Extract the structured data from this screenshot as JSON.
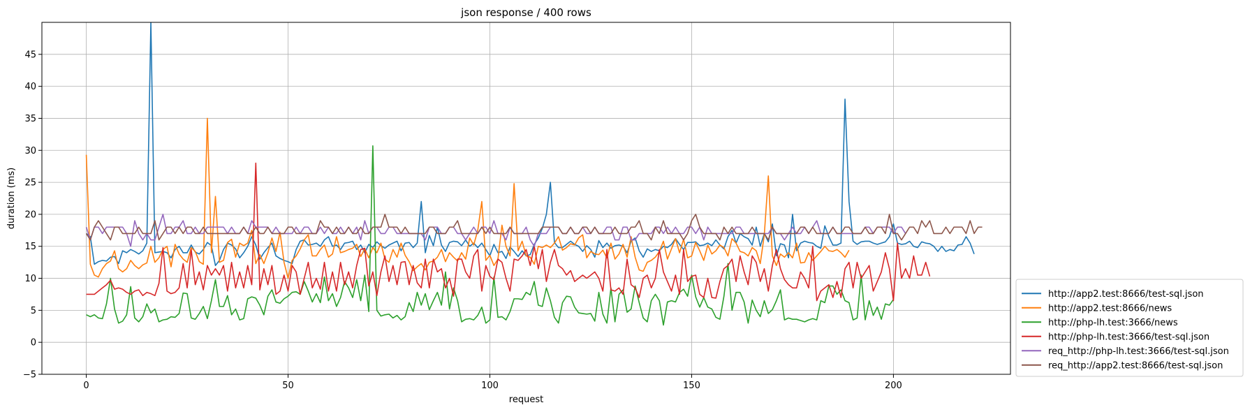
{
  "chart_data": {
    "type": "line",
    "title": "json response / 400 rows",
    "xlabel": "request",
    "ylabel": "duration (ms)",
    "xlim": [
      -11,
      229
    ],
    "ylim": [
      -5,
      50
    ],
    "xticks": [
      0,
      50,
      100,
      150,
      200
    ],
    "yticks": [
      -5,
      0,
      5,
      10,
      15,
      20,
      25,
      30,
      35,
      40,
      45
    ],
    "grid": true,
    "legend_position": "outside-right-bottom",
    "series": [
      {
        "name": "http://app2.test:8666/test-sql.json",
        "color": "#1f77b4",
        "values": [
          17,
          16.5,
          12.2,
          12.6,
          12.8,
          12.7,
          13.3,
          13.4,
          12.3,
          14.3,
          14,
          14.5,
          14.2,
          13.8,
          14.3,
          15.5,
          50,
          14,
          14.1,
          14.2,
          14,
          13.2,
          14.5,
          15,
          14,
          14,
          15.2,
          14.1,
          13.8,
          14.5,
          15.6,
          15.1,
          12,
          12.8,
          14.5,
          15.5,
          15.2,
          14.6,
          13.2,
          14,
          15,
          16.5,
          15.2,
          13,
          14,
          14.8,
          15.5,
          13.5,
          13.1,
          12.8,
          12.6,
          12.3,
          14.5,
          15.8,
          16,
          15.2,
          15.3,
          15.5,
          15,
          16,
          16.5,
          15,
          15.2,
          14.5,
          15.5,
          15.6,
          15.8,
          14.5,
          15.2,
          14,
          15.3,
          14.8,
          15.7,
          15.1,
          14.7,
          15.2,
          15.5,
          15.8,
          14.3,
          15.5,
          15.6,
          14.8,
          15.5,
          22,
          14,
          16.7,
          15.1,
          18,
          15.2,
          14.2,
          15.6,
          15.8,
          15.7,
          15.1,
          16,
          15,
          15.5,
          14.8,
          15.5,
          14.5,
          13.5,
          15.3,
          14,
          14.2,
          13.1,
          14.9,
          14.2,
          13.4,
          14.3,
          13.5,
          13.7,
          15.3,
          16.3,
          17.8,
          20,
          25,
          15.6,
          14.8,
          14.8,
          15.3,
          15.8,
          15.3,
          15,
          14.2,
          15.1,
          14.5,
          13.3,
          15.9,
          14.8,
          15.5,
          14.7,
          15.1,
          15.2,
          15,
          14,
          15.8,
          16.3,
          14.3,
          13.3,
          14.6,
          14.2,
          14.5,
          14.3,
          15,
          14.8,
          15.3,
          16.2,
          15.3,
          14.5,
          15.6,
          15.6,
          15.7,
          15.1,
          15.2,
          15.5,
          15.1,
          16,
          15.2,
          14.6,
          16.5,
          17.5,
          15.5,
          17,
          16.5,
          16.2,
          15.2,
          18,
          15,
          17,
          15.7,
          18.5,
          13.5,
          15.4,
          15.2,
          13.2,
          20,
          14.3,
          15.5,
          15.8,
          15.6,
          15.5,
          15,
          14.7,
          18.2,
          16.5,
          15.2,
          15.2,
          15.5,
          38,
          22,
          15.8,
          15.3,
          15.7,
          15.8,
          15.8,
          15.5,
          15.3,
          15.5,
          15.7,
          16.5,
          18.5,
          15.5,
          15.3,
          15.4,
          15.8,
          15,
          14.8,
          15.7,
          15.5,
          15.4,
          15,
          14.2,
          15,
          14.2,
          14.5,
          14.3,
          15.2,
          15.3,
          16.5,
          15.5,
          13.8
        ]
      },
      {
        "name": "http://app2.test:8666/news",
        "color": "#ff7f0e",
        "values": [
          29.3,
          12.2,
          10.5,
          10.2,
          11.5,
          12.3,
          12.7,
          14.3,
          11.5,
          11,
          11.5,
          12.8,
          12,
          11.5,
          12.1,
          12.4,
          15,
          12.5,
          13.2,
          14.5,
          15,
          11.8,
          15.3,
          13.8,
          13,
          12.5,
          14.8,
          14.2,
          12.6,
          12.2,
          35,
          14,
          22.8,
          12.5,
          12.8,
          15.6,
          16.1,
          13.3,
          15.5,
          15.1,
          15.5,
          17.5,
          12.3,
          13.7,
          12.3,
          14,
          16.3,
          14.2,
          17.2,
          12.5,
          10,
          12.8,
          13.5,
          14.6,
          16,
          16.8,
          13.5,
          13.5,
          14.5,
          15.2,
          13.3,
          13.8,
          16.5,
          14,
          14.2,
          14.5,
          14.7,
          15.3,
          13.4,
          14.6,
          13.2,
          14.8,
          14,
          15.5,
          13,
          12.5,
          14.5,
          13.3,
          15.5,
          13.6,
          12.6,
          11.2,
          11.8,
          12.3,
          11.3,
          12.5,
          12.7,
          13.3,
          14.5,
          12.6,
          14,
          13.3,
          12.7,
          14,
          13,
          16.3,
          15.2,
          17.5,
          22,
          12.8,
          13.6,
          12,
          13,
          18.3,
          15,
          13.5,
          24.8,
          14.3,
          15.8,
          13.5,
          13.3,
          12.2,
          15,
          14.8,
          15.2,
          14.8,
          15.5,
          16.5,
          14.4,
          14.8,
          15.4,
          15.2,
          16.3,
          16.8,
          13.2,
          14.2,
          13.8,
          13.7,
          14.4,
          13.2,
          15.5,
          13,
          13.8,
          15.3,
          13.3,
          16.5,
          13.3,
          11.3,
          11.1,
          12.5,
          12.8,
          13.3,
          14.2,
          15.8,
          13,
          14.6,
          16.2,
          14,
          16.1,
          13.2,
          13.5,
          15.6,
          14.3,
          12.8,
          15.2,
          13.8,
          14.3,
          15.2,
          14.8,
          13.5,
          16.2,
          15.5,
          14.2,
          14,
          13.5,
          14.8,
          14.3,
          12.3,
          16.8,
          26,
          13.5,
          12,
          13.8,
          13.3,
          14,
          13.2,
          15.5,
          12.4,
          12.5,
          14,
          12.8,
          13.5,
          14.2,
          15,
          14.3,
          14.2,
          14.5,
          14,
          13.3,
          14.4
        ]
      },
      {
        "name": "http://php-lh.test:3666/news",
        "color": "#2ca02c",
        "values": [
          4.3,
          4,
          4.3,
          3.8,
          3.7,
          6,
          10,
          5.2,
          3,
          3.3,
          4.3,
          8.7,
          3.8,
          3.2,
          4,
          6,
          4.6,
          5.2,
          3.2,
          3.5,
          3.6,
          4,
          3.9,
          4.5,
          7.7,
          7.6,
          3.8,
          3.6,
          4.5,
          5.6,
          3.7,
          6.5,
          9.8,
          5.6,
          5.6,
          7.3,
          4.3,
          5.2,
          3.5,
          3.7,
          6.8,
          7.1,
          6.9,
          5.8,
          4.3,
          7.2,
          8.2,
          6.3,
          6.1,
          6.8,
          7.2,
          7.8,
          7.9,
          7.5,
          9.5,
          8,
          6.3,
          7.6,
          6.2,
          10.2,
          6.5,
          7.6,
          5.6,
          7,
          9.5,
          8.5,
          7,
          9.8,
          6.5,
          10.5,
          4.8,
          30.7,
          5,
          4.1,
          4.3,
          4.4,
          3.8,
          4.2,
          3.5,
          4,
          6.2,
          4.8,
          7.8,
          5.8,
          7.6,
          5.1,
          6.5,
          7.8,
          5.8,
          11,
          5.2,
          8.5,
          6.5,
          3.2,
          3.6,
          3.7,
          3.5,
          4.2,
          5.5,
          3,
          3.5,
          10.2,
          3.9,
          4,
          3.5,
          4.8,
          6.8,
          6.8,
          6.7,
          7.8,
          7.4,
          9.5,
          5.8,
          5.6,
          8.5,
          6.5,
          3.9,
          3,
          6.2,
          7.2,
          7.1,
          5.5,
          4.6,
          4.5,
          4.4,
          4.5,
          3.3,
          7.8,
          4.4,
          3,
          8.5,
          3.2,
          7.5,
          8.2,
          4.7,
          5.2,
          8.8,
          6.2,
          3.8,
          3.2,
          6.5,
          7.5,
          6.5,
          2.7,
          6.3,
          6.5,
          6.3,
          7.8,
          8.3,
          7.2,
          10.5,
          7.1,
          5.5,
          7,
          5.5,
          5.2,
          3.9,
          3.6,
          7.2,
          12.3,
          5,
          7.8,
          7.8,
          6.3,
          3,
          6.6,
          5,
          4,
          6.5,
          4.5,
          5.1,
          6.5,
          8.2,
          3.5,
          3.8,
          3.6,
          3.6,
          3.4,
          3.2,
          3.5,
          3.7,
          3.5,
          6.5,
          6.2,
          8.8,
          8.8,
          7.5,
          8.2,
          6.5,
          6.2,
          3.5,
          3.8,
          10.5,
          3.5,
          6.5,
          4.2,
          5.5,
          3.6,
          6,
          5.8,
          6.7
        ]
      },
      {
        "name": "http://php-lh.test:3666/test-sql.json",
        "color": "#d62728",
        "values": [
          7.5,
          7.5,
          7.5,
          8,
          8.5,
          9,
          9.7,
          8.3,
          8.5,
          8.3,
          7.8,
          7.5,
          8,
          8.2,
          7.3,
          7.8,
          7.6,
          7.3,
          9.2,
          14.8,
          8,
          7.6,
          7.8,
          8.5,
          12.3,
          8.5,
          14.5,
          9,
          11,
          8.2,
          12,
          10.5,
          11.5,
          10.5,
          12,
          8,
          12.5,
          8.5,
          11,
          8.5,
          12,
          9,
          28,
          8.2,
          11.5,
          9,
          12,
          7.5,
          8,
          10.5,
          8,
          12,
          11,
          7.5,
          10,
          12.5,
          8.5,
          10,
          8.3,
          12.5,
          8,
          11,
          8,
          12.5,
          9,
          11,
          8.5,
          12,
          14.5,
          14.7,
          8.8,
          11,
          7.3,
          11,
          13.5,
          9.5,
          12,
          9,
          12.5,
          12.6,
          9,
          12,
          9.3,
          8.5,
          13,
          8.5,
          13,
          11,
          11.5,
          8.5,
          10,
          7.2,
          13,
          13,
          11,
          10,
          13.5,
          14.5,
          8,
          12,
          10.3,
          9.8,
          13,
          12.5,
          10,
          8,
          13,
          12.8,
          13.5,
          14.5,
          12,
          15,
          11.5,
          14.5,
          9.5,
          12.5,
          14.5,
          12,
          11.5,
          10.5,
          11.2,
          9.5,
          10,
          10.5,
          10,
          10.5,
          11,
          10,
          8,
          14.5,
          8.2,
          8,
          8.5,
          7.5,
          13,
          9,
          8.5,
          7,
          10,
          10.5,
          8.5,
          10,
          14.5,
          11,
          9.5,
          8,
          10.5,
          7.5,
          14.5,
          9.5,
          10.3,
          10.5,
          7.5,
          7,
          10,
          7,
          6.9,
          9.5,
          11.5,
          12,
          13,
          9.5,
          13.5,
          11,
          9,
          13.5,
          12.5,
          9.5,
          11.5,
          8,
          12,
          14.5,
          11.5,
          9.8,
          9,
          8.5,
          8.5,
          11,
          10,
          8.5,
          15,
          6.5,
          8,
          8.5,
          9,
          7,
          9.5,
          7,
          11.5,
          12.5,
          8.5,
          12.5,
          10,
          11,
          12,
          8,
          9.5,
          11,
          14,
          11.5,
          6.5,
          15.5,
          10,
          11.5,
          10,
          13.5,
          10.5,
          10.5,
          12.5,
          10.3
        ]
      },
      {
        "name": "req_http://php-lh.test:3666/test-sql.json",
        "color": "#9467bd",
        "values": [
          18,
          16,
          18,
          18,
          17,
          18,
          18,
          18,
          18,
          18,
          17,
          15,
          19,
          17,
          16,
          17,
          16,
          16,
          18,
          20,
          17,
          17,
          18,
          18,
          19,
          17,
          17,
          18,
          17,
          17,
          18,
          18,
          18,
          18,
          18,
          17,
          18,
          17,
          17,
          18,
          17,
          19,
          18,
          18,
          18,
          18,
          17,
          18,
          17,
          17,
          17,
          17,
          18,
          17,
          18,
          18,
          17,
          17,
          18,
          17,
          18,
          17,
          17,
          18,
          17,
          18,
          17,
          18,
          16,
          19,
          17,
          18,
          18,
          17,
          17,
          18,
          18,
          17,
          17,
          17,
          17,
          17,
          17,
          17,
          16,
          18,
          18,
          18,
          17,
          17,
          18,
          18,
          17,
          17,
          16,
          17,
          18,
          17,
          18,
          18,
          17,
          19,
          17,
          17,
          16,
          18,
          17,
          17,
          17,
          18,
          16,
          15,
          17,
          17,
          17,
          18,
          18,
          18,
          17,
          17,
          18,
          17,
          17,
          18,
          17,
          17,
          18,
          17,
          17,
          18,
          18,
          16,
          16,
          18,
          18,
          16,
          16,
          17,
          17,
          17,
          17,
          18,
          18,
          17,
          18,
          17,
          18,
          17,
          17,
          18,
          18,
          17,
          18,
          16,
          18,
          17,
          17,
          17,
          17,
          17,
          17,
          18,
          18,
          17,
          17,
          17,
          17,
          17,
          17,
          17,
          18,
          17,
          17,
          16,
          17,
          18,
          17,
          17,
          18,
          17,
          18,
          19,
          17,
          17,
          17,
          18,
          17,
          17,
          17,
          17,
          17,
          17,
          17,
          18,
          18,
          17,
          18,
          18,
          18,
          18,
          17,
          18,
          18,
          17
        ]
      },
      {
        "name": "req_http://app2.test:8666/test-sql.json",
        "color": "#8c564b",
        "values": [
          17,
          16,
          18,
          19,
          18,
          17,
          16,
          18,
          18,
          17,
          17,
          17,
          17,
          18,
          17,
          17,
          17,
          19,
          16,
          17,
          18,
          18,
          17,
          18,
          17,
          18,
          18,
          17,
          17,
          18,
          17,
          17,
          17,
          17,
          17,
          17,
          17,
          17,
          17,
          18,
          17,
          17,
          18,
          17,
          17,
          18,
          17,
          17,
          17,
          17,
          18,
          18,
          17,
          17,
          17,
          17,
          17,
          17,
          19,
          18,
          18,
          17,
          18,
          17,
          17,
          18,
          17,
          17,
          18,
          17,
          17,
          18,
          18,
          18,
          20,
          18,
          18,
          18,
          17,
          18,
          17,
          17,
          17,
          17,
          17,
          18,
          18,
          17,
          17,
          17,
          18,
          18,
          19,
          17,
          17,
          17,
          17,
          17,
          18,
          17,
          18,
          17,
          17,
          17,
          17,
          18,
          17,
          17,
          17,
          17,
          17,
          17,
          17,
          18,
          18,
          18,
          18,
          18,
          17,
          17,
          18,
          17,
          17,
          18,
          18,
          17,
          18,
          17,
          17,
          17,
          17,
          18,
          17,
          17,
          17,
          18,
          18,
          19,
          17,
          17,
          16,
          18,
          17,
          19,
          17,
          17,
          17,
          17,
          16,
          17,
          19,
          20,
          18,
          17,
          17,
          17,
          17,
          16,
          18,
          17,
          18,
          17,
          17,
          17,
          17,
          18,
          17,
          17,
          17,
          16,
          18,
          17,
          17,
          17,
          17,
          17,
          17,
          18,
          18,
          17,
          18,
          17,
          17,
          17,
          17,
          18,
          17,
          17,
          18,
          18,
          17,
          17,
          17,
          18,
          17,
          17,
          18,
          18,
          17,
          20,
          17,
          17,
          16,
          17,
          18,
          18,
          17,
          19,
          18,
          19,
          17,
          17,
          17,
          18,
          17,
          18,
          18,
          18,
          17,
          19,
          17,
          18,
          18
        ]
      }
    ]
  }
}
